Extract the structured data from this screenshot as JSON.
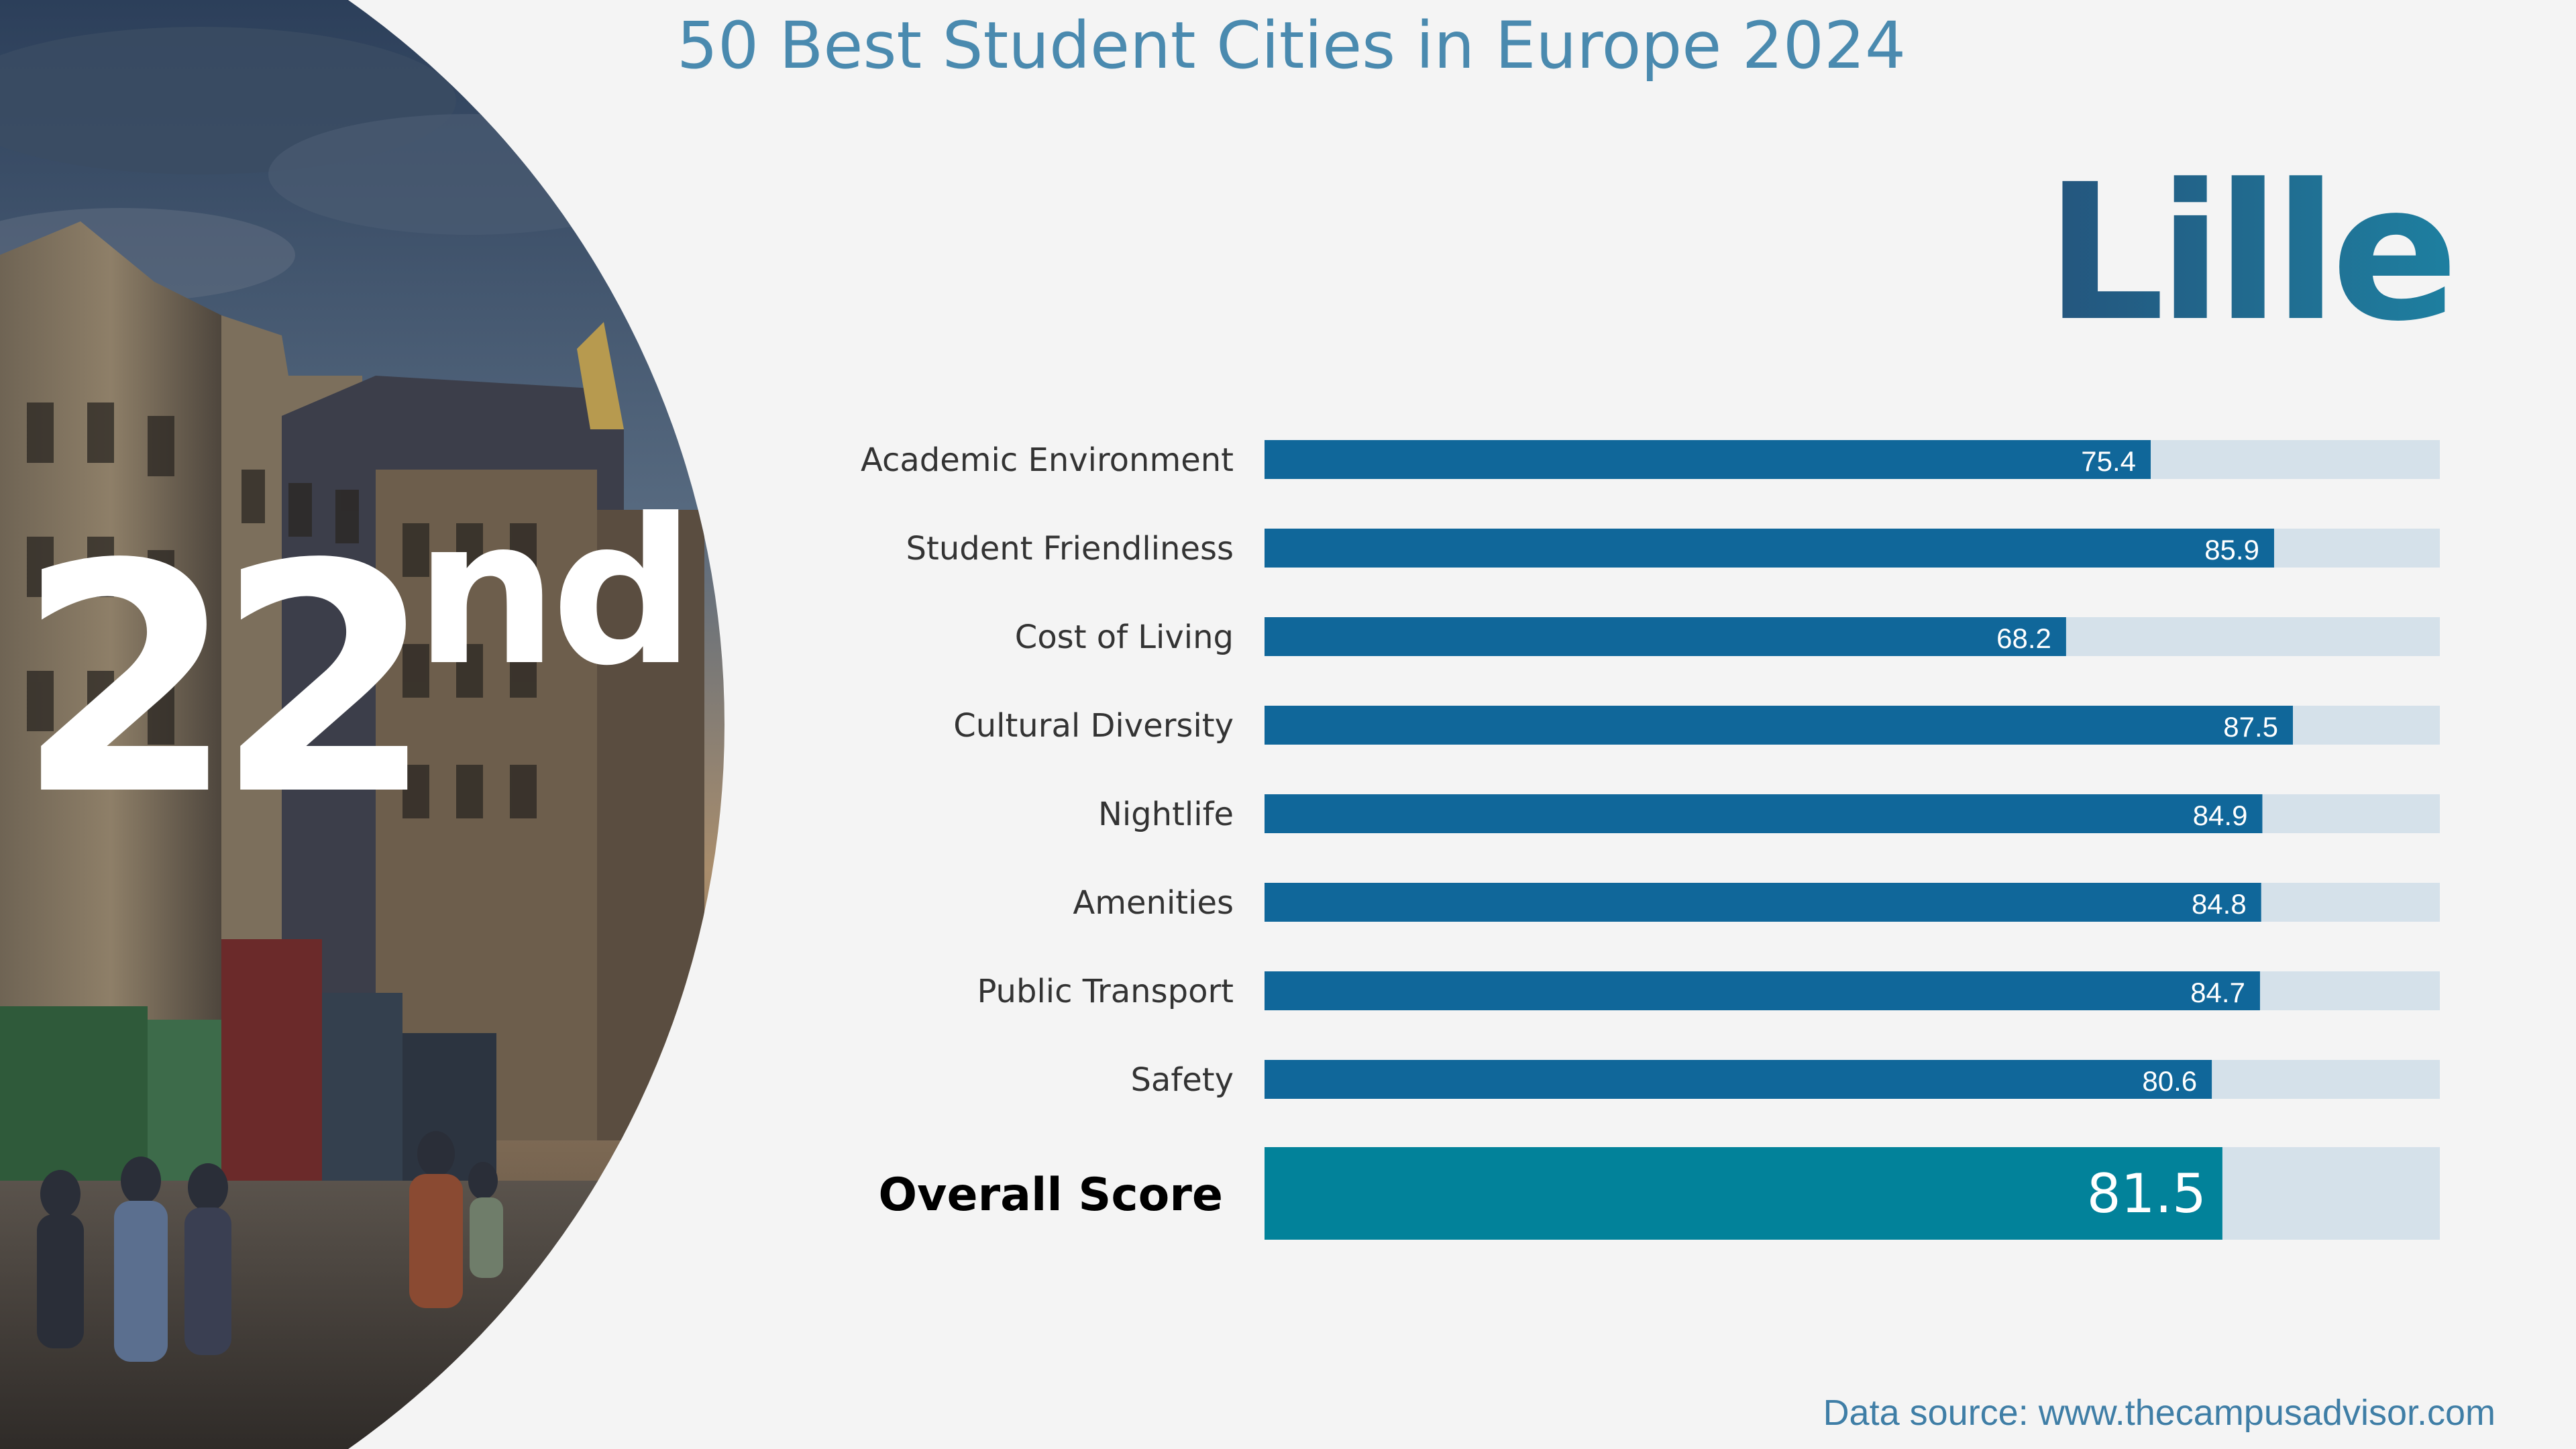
{
  "header": {
    "title": "50 Best Student Cities in Europe 2024"
  },
  "city": {
    "name": "Lille"
  },
  "rank": {
    "number": "22",
    "suffix": "nd"
  },
  "colors": {
    "bar": "#10679a",
    "overall": "#02829a",
    "track": "#d5e1ea",
    "label": "#333333"
  },
  "chart_data": {
    "type": "bar",
    "orientation": "horizontal",
    "xlim": [
      0,
      100
    ],
    "categories": [
      "Academic Environment",
      "Student Friendliness",
      "Cost of Living",
      "Cultural Diversity",
      "Nightlife",
      "Amenities",
      "Public Transport",
      "Safety"
    ],
    "values": [
      75.4,
      85.9,
      68.2,
      87.5,
      84.9,
      84.8,
      84.7,
      80.6
    ],
    "labels": [
      "75.4",
      "85.9",
      "68.2",
      "87.5",
      "84.9",
      "84.8",
      "84.7",
      "80.6"
    ],
    "overall": {
      "label": "Overall Score",
      "value": 81.5,
      "value_label": "81.5"
    }
  },
  "footer": {
    "source": "Data source: www.thecampusadvisor.com"
  },
  "photo": {
    "description_icon": "city-street-photo"
  }
}
